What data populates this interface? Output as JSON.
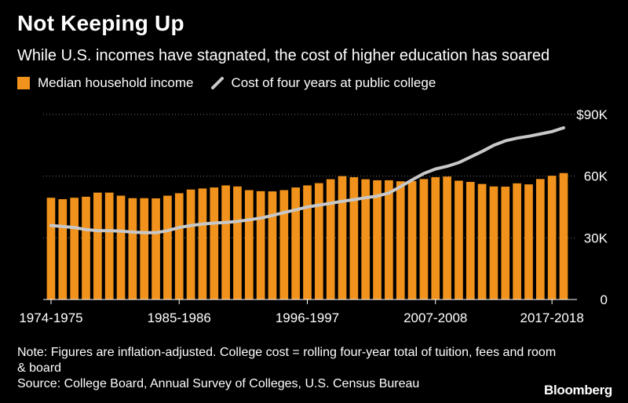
{
  "header": {
    "title": "Not Keeping Up",
    "subtitle": "While U.S. incomes have stagnated, the cost of higher education has soared"
  },
  "colors": {
    "background": "#000000",
    "bar": "#f0921b",
    "line": "#c8c8c8",
    "text": "#ffffff",
    "grid": "#777777"
  },
  "chart_data": {
    "type": "bar",
    "ylim": [
      0,
      90000
    ],
    "y_ticks": [
      {
        "value": 90000,
        "label": "$90K"
      },
      {
        "value": 60000,
        "label": "60K"
      },
      {
        "value": 30000,
        "label": "30K"
      },
      {
        "value": 0,
        "label": "0"
      }
    ],
    "x_tick_labels": [
      {
        "index": 0,
        "label": "1974-1975"
      },
      {
        "index": 11,
        "label": "1985-1986"
      },
      {
        "index": 22,
        "label": "1996-1997"
      },
      {
        "index": 33,
        "label": "2007-2008"
      },
      {
        "index": 43,
        "label": "2017-2018"
      }
    ],
    "grid": "dotted horizontal",
    "legend_position": "top-left",
    "series": [
      {
        "name": "Median household income",
        "kind": "bar",
        "values": [
          49500,
          48800,
          49500,
          50000,
          52000,
          52000,
          50500,
          49300,
          49300,
          49200,
          50500,
          51700,
          53500,
          54000,
          54500,
          55500,
          55000,
          53200,
          52700,
          52600,
          53200,
          54500,
          55500,
          56600,
          58500,
          60000,
          59500,
          58500,
          58000,
          58000,
          57500,
          57600,
          58600,
          59500,
          59800,
          57800,
          57200,
          56200,
          55000,
          54900,
          56500,
          56000,
          58600,
          60200,
          61500
        ]
      },
      {
        "name": "Cost of four years at public college",
        "kind": "line",
        "values": [
          36000,
          35500,
          35000,
          34000,
          33500,
          33500,
          33300,
          32800,
          32500,
          32500,
          33500,
          35000,
          36000,
          36700,
          37200,
          37500,
          38000,
          38800,
          39600,
          40900,
          42300,
          43600,
          45000,
          45900,
          46800,
          47800,
          48600,
          49500,
          50300,
          51800,
          54900,
          58200,
          61300,
          63500,
          64800,
          66600,
          69300,
          72000,
          75000,
          77200,
          78500,
          79400,
          80500,
          81700,
          83500
        ]
      }
    ]
  },
  "footer": {
    "note": "Note: Figures are inflation-adjusted. College cost = rolling four-year total of tuition, fees and room & board",
    "source": "Source: College Board, Annual Survey of Colleges, U.S. Census Bureau",
    "brand": "Bloomberg"
  }
}
